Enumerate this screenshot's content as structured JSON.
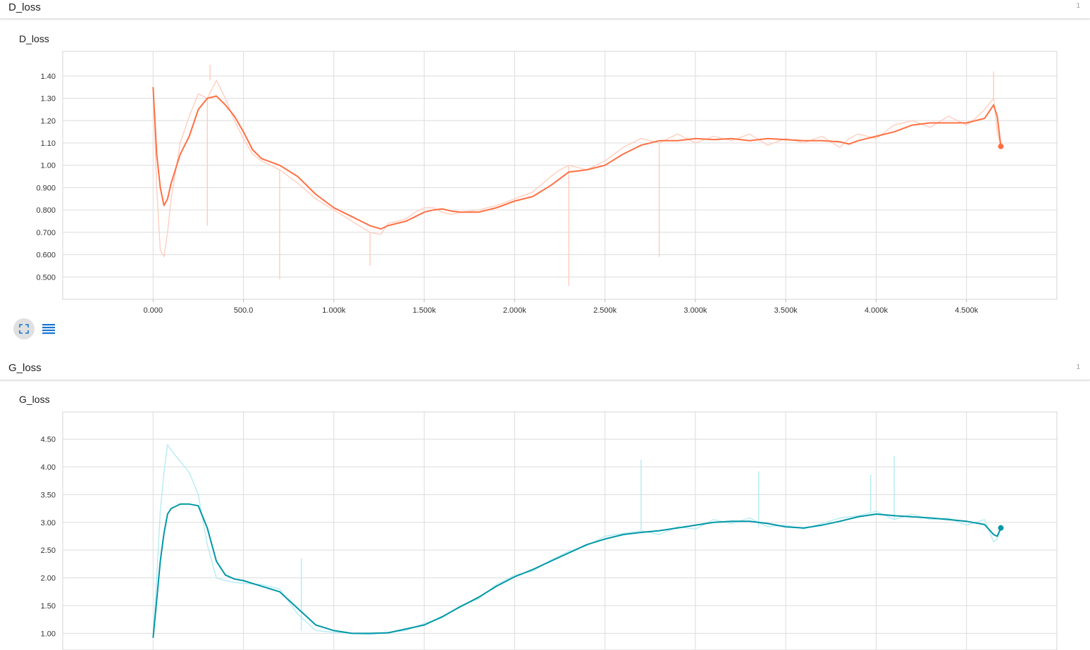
{
  "app": {
    "accent_color": "#f57c00"
  },
  "sections": [
    {
      "name": "D_loss",
      "count": "1"
    },
    {
      "name": "G_loss",
      "count": "1"
    }
  ],
  "icons": {
    "expand": "fullscreen-expand-icon",
    "data_table": "data-table-toggle-icon"
  },
  "chart_data": [
    {
      "type": "line",
      "title": "D_loss",
      "xlabel": "",
      "ylabel": "",
      "xlim": [
        -500,
        5000
      ],
      "ylim": [
        0.4,
        1.51
      ],
      "x_ticks": [
        0,
        500,
        1000,
        1500,
        2000,
        2500,
        3000,
        3500,
        4000,
        4500
      ],
      "x_tick_labels": [
        "0.000",
        "500.0",
        "1.000k",
        "1.500k",
        "2.000k",
        "2.500k",
        "3.000k",
        "3.500k",
        "4.000k",
        "4.500k"
      ],
      "y_ticks": [
        0.5,
        0.6,
        0.7,
        0.8,
        0.9,
        1.0,
        1.1,
        1.2,
        1.3,
        1.4
      ],
      "y_tick_labels": [
        "0.500",
        "0.600",
        "0.700",
        "0.800",
        "0.900",
        "1.00",
        "1.10",
        "1.20",
        "1.30",
        "1.40"
      ],
      "grid": true,
      "series_color": "#ff7043",
      "raw_color": "#ffccbc",
      "x": [
        0,
        20,
        40,
        60,
        80,
        100,
        150,
        200,
        250,
        300,
        350,
        400,
        450,
        500,
        550,
        600,
        700,
        800,
        900,
        1000,
        1100,
        1200,
        1260,
        1300,
        1400,
        1450,
        1500,
        1550,
        1600,
        1650,
        1700,
        1800,
        1900,
        2000,
        2100,
        2200,
        2250,
        2300,
        2350,
        2400,
        2500,
        2600,
        2700,
        2800,
        2900,
        3000,
        3100,
        3200,
        3300,
        3400,
        3500,
        3600,
        3700,
        3800,
        3850,
        3900,
        4000,
        4100,
        4200,
        4300,
        4400,
        4500,
        4550,
        4600,
        4650,
        4670,
        4690
      ],
      "smoothed": [
        1.35,
        1.05,
        0.9,
        0.82,
        0.85,
        0.92,
        1.05,
        1.13,
        1.25,
        1.3,
        1.31,
        1.27,
        1.22,
        1.15,
        1.07,
        1.03,
        1.0,
        0.95,
        0.87,
        0.81,
        0.77,
        0.73,
        0.715,
        0.73,
        0.75,
        0.77,
        0.79,
        0.8,
        0.805,
        0.795,
        0.79,
        0.79,
        0.81,
        0.84,
        0.86,
        0.91,
        0.94,
        0.97,
        0.975,
        0.98,
        1.0,
        1.05,
        1.09,
        1.11,
        1.11,
        1.12,
        1.115,
        1.12,
        1.11,
        1.12,
        1.115,
        1.11,
        1.11,
        1.105,
        1.095,
        1.11,
        1.13,
        1.15,
        1.18,
        1.19,
        1.19,
        1.19,
        1.2,
        1.21,
        1.27,
        1.22,
        1.085
      ],
      "raw": [
        1.35,
        0.9,
        0.62,
        0.59,
        0.7,
        0.85,
        1.1,
        1.22,
        1.32,
        1.3,
        1.38,
        1.3,
        1.2,
        1.12,
        1.05,
        1.02,
        0.98,
        0.92,
        0.85,
        0.8,
        0.75,
        0.7,
        0.69,
        0.74,
        0.76,
        0.79,
        0.81,
        0.81,
        0.79,
        0.78,
        0.79,
        0.8,
        0.82,
        0.85,
        0.88,
        0.95,
        0.98,
        1.0,
        0.99,
        0.98,
        1.02,
        1.08,
        1.12,
        1.1,
        1.14,
        1.1,
        1.13,
        1.11,
        1.14,
        1.09,
        1.12,
        1.1,
        1.13,
        1.08,
        1.12,
        1.14,
        1.12,
        1.18,
        1.2,
        1.17,
        1.22,
        1.18,
        1.21,
        1.25,
        1.3,
        1.15,
        1.085
      ],
      "spikes": [
        [
          300,
          0.73
        ],
        [
          315,
          1.45
        ],
        [
          700,
          0.49
        ],
        [
          1200,
          0.55
        ],
        [
          2300,
          0.46
        ],
        [
          2800,
          0.59
        ],
        [
          4650,
          1.42
        ]
      ]
    },
    {
      "type": "line",
      "title": "G_loss",
      "xlabel": "",
      "ylabel": "",
      "xlim": [
        -500,
        5000
      ],
      "ylim": [
        0.7,
        4.99
      ],
      "x_ticks": [
        0,
        500,
        1000,
        1500,
        2000,
        2500,
        3000,
        3500,
        4000,
        4500
      ],
      "y_ticks": [
        1.0,
        1.5,
        2.0,
        2.5,
        3.0,
        3.5,
        4.0,
        4.5
      ],
      "y_tick_labels": [
        "1.00",
        "1.50",
        "2.00",
        "2.50",
        "3.00",
        "3.50",
        "4.00",
        "4.50"
      ],
      "grid": true,
      "series_color": "#0097a7",
      "raw_color": "#b2ebf2",
      "x": [
        0,
        20,
        40,
        60,
        80,
        100,
        150,
        200,
        250,
        300,
        350,
        400,
        450,
        500,
        600,
        700,
        800,
        900,
        1000,
        1100,
        1200,
        1300,
        1400,
        1500,
        1600,
        1700,
        1800,
        1900,
        2000,
        2100,
        2200,
        2300,
        2400,
        2500,
        2600,
        2700,
        2800,
        2900,
        3000,
        3100,
        3200,
        3300,
        3400,
        3500,
        3600,
        3700,
        3800,
        3900,
        4000,
        4100,
        4200,
        4300,
        4400,
        4500,
        4600,
        4650,
        4670,
        4690
      ],
      "smoothed": [
        0.92,
        1.6,
        2.3,
        2.8,
        3.15,
        3.25,
        3.33,
        3.33,
        3.3,
        2.9,
        2.3,
        2.05,
        1.98,
        1.95,
        1.85,
        1.75,
        1.45,
        1.15,
        1.05,
        1.0,
        1.0,
        1.01,
        1.08,
        1.15,
        1.3,
        1.48,
        1.65,
        1.85,
        2.02,
        2.15,
        2.3,
        2.45,
        2.6,
        2.7,
        2.78,
        2.82,
        2.85,
        2.9,
        2.95,
        3.0,
        3.02,
        3.02,
        2.98,
        2.92,
        2.9,
        2.95,
        3.02,
        3.1,
        3.15,
        3.12,
        3.1,
        3.08,
        3.05,
        3.02,
        2.96,
        2.78,
        2.75,
        2.9
      ],
      "raw": [
        0.92,
        2.0,
        3.2,
        3.9,
        4.4,
        4.3,
        4.1,
        3.9,
        3.5,
        2.6,
        2.0,
        1.95,
        1.92,
        1.9,
        1.88,
        1.8,
        1.35,
        1.05,
        1.02,
        1.0,
        0.98,
        1.02,
        1.05,
        1.18,
        1.28,
        1.5,
        1.62,
        1.88,
        2.05,
        2.12,
        2.32,
        2.48,
        2.58,
        2.75,
        2.8,
        2.85,
        2.78,
        2.92,
        2.88,
        3.05,
        2.98,
        3.08,
        2.92,
        2.95,
        2.88,
        2.98,
        3.08,
        3.12,
        3.2,
        3.05,
        3.15,
        3.05,
        3.08,
        2.95,
        3.05,
        2.65,
        2.7,
        2.9
      ],
      "spikes": [
        [
          820,
          2.35
        ],
        [
          2700,
          4.13
        ],
        [
          3350,
          3.92
        ],
        [
          3970,
          3.86
        ],
        [
          4100,
          4.2
        ]
      ]
    }
  ]
}
